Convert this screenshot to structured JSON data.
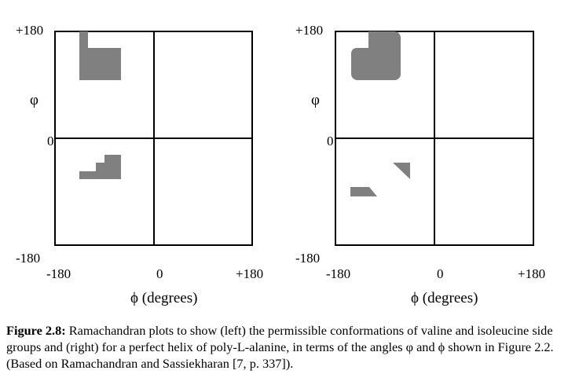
{
  "plots": [
    {
      "id": "left",
      "y_top_label": "+180",
      "y_mid_label": "0",
      "y_bottom_label": "-180",
      "y_axis_symbol": "φ",
      "x_left_label": "-180",
      "x_mid_label": "0",
      "x_right_label": "+180",
      "x_axis_title": "ϕ (degrees)"
    },
    {
      "id": "right",
      "y_top_label": "+180",
      "y_mid_label": "0",
      "y_bottom_label": "-180",
      "y_axis_symbol": "φ",
      "x_left_label": "-180",
      "x_mid_label": "0",
      "x_right_label": "+180",
      "x_axis_title": "ϕ (degrees)"
    }
  ],
  "caption": {
    "label": "Figure 2.8:",
    "text": " Ramachandran plots to show (left) the permissible conformations of valine and isoleucine side groups and (right) for a perfect helix of poly-L-alanine, in terms of the angles φ and ϕ shown in Figure 2.2.  (Based on Ramachandran and Sassiekharan [7, p. 337])."
  },
  "colors": {
    "region": "#808080",
    "axis": "#000000"
  }
}
